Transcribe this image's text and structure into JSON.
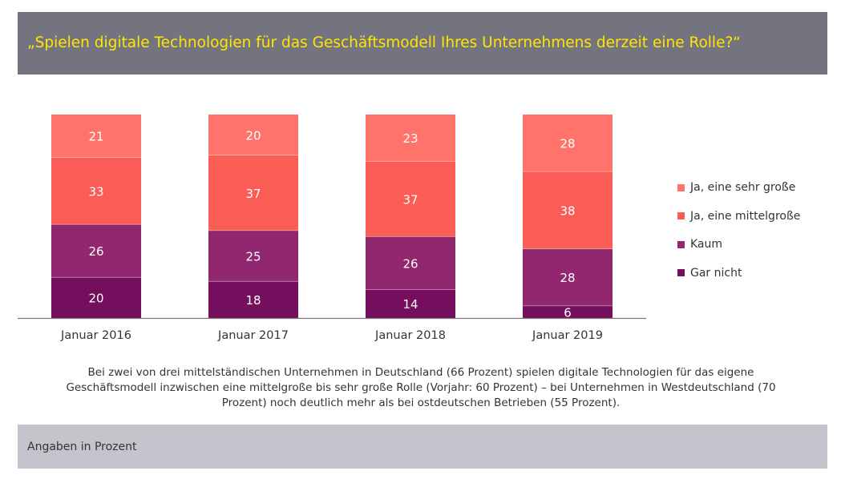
{
  "header": {
    "title": "„Spielen digitale Technologien für das Geschäftsmodell Ihres Unternehmens derzeit eine Rolle?“"
  },
  "chart_data": {
    "type": "bar",
    "stacked": true,
    "categories": [
      "Januar 2016",
      "Januar 2017",
      "Januar 2018",
      "Januar 2019"
    ],
    "series": [
      {
        "name": "Gar nicht",
        "values": [
          20,
          18,
          14,
          6
        ],
        "color": "#750E5C"
      },
      {
        "name": "Kaum",
        "values": [
          26,
          25,
          26,
          28
        ],
        "color": "#91276F"
      },
      {
        "name": "Ja, eine mittelgroße",
        "values": [
          33,
          37,
          37,
          38
        ],
        "color": "#F95D55"
      },
      {
        "name": "Ja, eine sehr große",
        "values": [
          21,
          20,
          23,
          28
        ],
        "color": "#FF736A"
      }
    ],
    "legend_order": [
      "Ja, eine sehr große",
      "Ja, eine mittelgroße",
      "Kaum",
      "Gar nicht"
    ],
    "legend": "right",
    "grid": false
  },
  "caption": "Bei zwei von drei mittelständischen Unternehmen in Deutschland (66 Prozent) spielen digitale Technologien für das eigene Geschäftsmodell inzwischen eine mittelgroße bis sehr große Rolle (Vorjahr: 60 Prozent) – bei Unternehmen in Westdeutschland (70 Prozent) noch deutlich mehr als bei ostdeutschen Betrieben (55 Prozent).",
  "footer": {
    "note": "Angaben in Prozent"
  }
}
